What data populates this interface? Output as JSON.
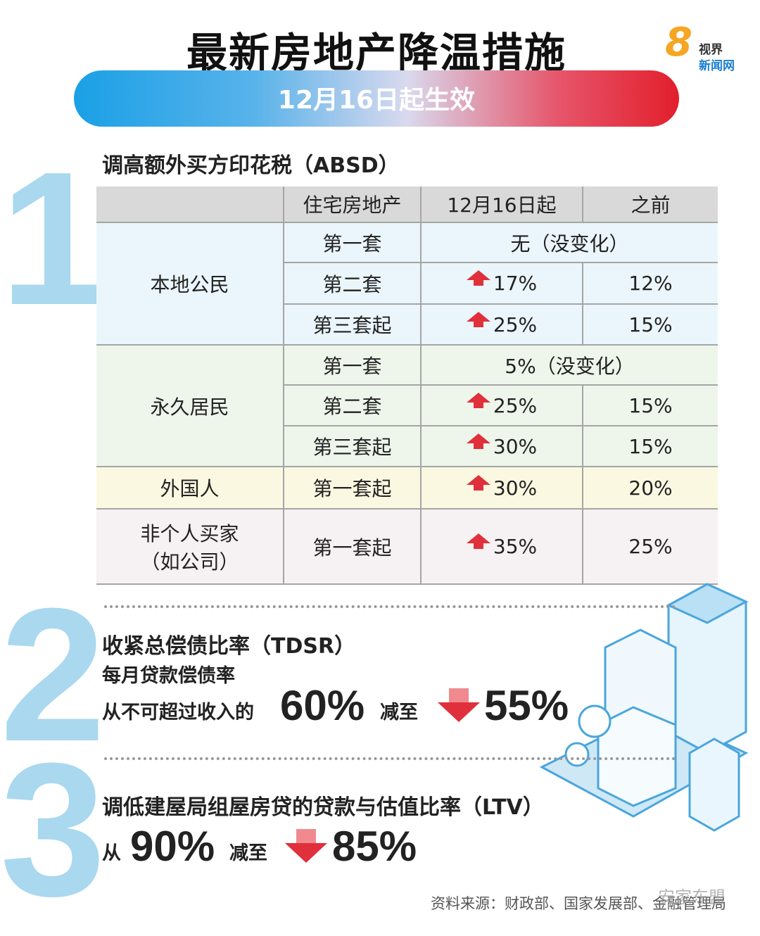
{
  "header": {
    "title": "最新房地产降温措施",
    "subtitle": "12月16日起生效"
  },
  "logo": {
    "mark": "8",
    "line1": "视界",
    "line2": "新闻网"
  },
  "sections": [
    {
      "number": "1",
      "heading": "调高额外买方印花税（ABSD）",
      "table": {
        "columns": [
          "住宅房地产",
          "12月16日起",
          "之前"
        ],
        "groups": [
          {
            "label": "本地公民",
            "rows": [
              {
                "property": "第一套",
                "unchanged": "无（没变化）"
              },
              {
                "property": "第二套",
                "new": "17%",
                "before": "12%"
              },
              {
                "property": "第三套起",
                "new": "25%",
                "before": "15%"
              }
            ]
          },
          {
            "label": "永久居民",
            "rows": [
              {
                "property": "第一套",
                "unchanged": "5%（没变化）"
              },
              {
                "property": "第二套",
                "new": "25%",
                "before": "15%"
              },
              {
                "property": "第三套起",
                "new": "30%",
                "before": "15%"
              }
            ]
          },
          {
            "label": "外国人",
            "rows": [
              {
                "property": "第一套起",
                "new": "30%",
                "before": "20%"
              }
            ]
          },
          {
            "label": "非个人买家",
            "label_note": "（如公司）",
            "rows": [
              {
                "property": "第一套起",
                "new": "35%",
                "before": "25%"
              }
            ]
          }
        ]
      }
    },
    {
      "number": "2",
      "heading": "收紧总偿债比率（TDSR）",
      "subheading": "每月贷款偿债率",
      "from_text": "从不可超过收入的",
      "from": "60%",
      "to_text": "减至",
      "to": "55%"
    },
    {
      "number": "3",
      "heading": "调低建屋局组屋房贷的贷款与估值比率（LTV）",
      "from_text": "从",
      "from": "90%",
      "to_text": "减至",
      "to": "85%"
    }
  ],
  "footer": {
    "source": "资料来源：财政部、国家发展部、金融管理局",
    "watermark": "安家东盟"
  }
}
